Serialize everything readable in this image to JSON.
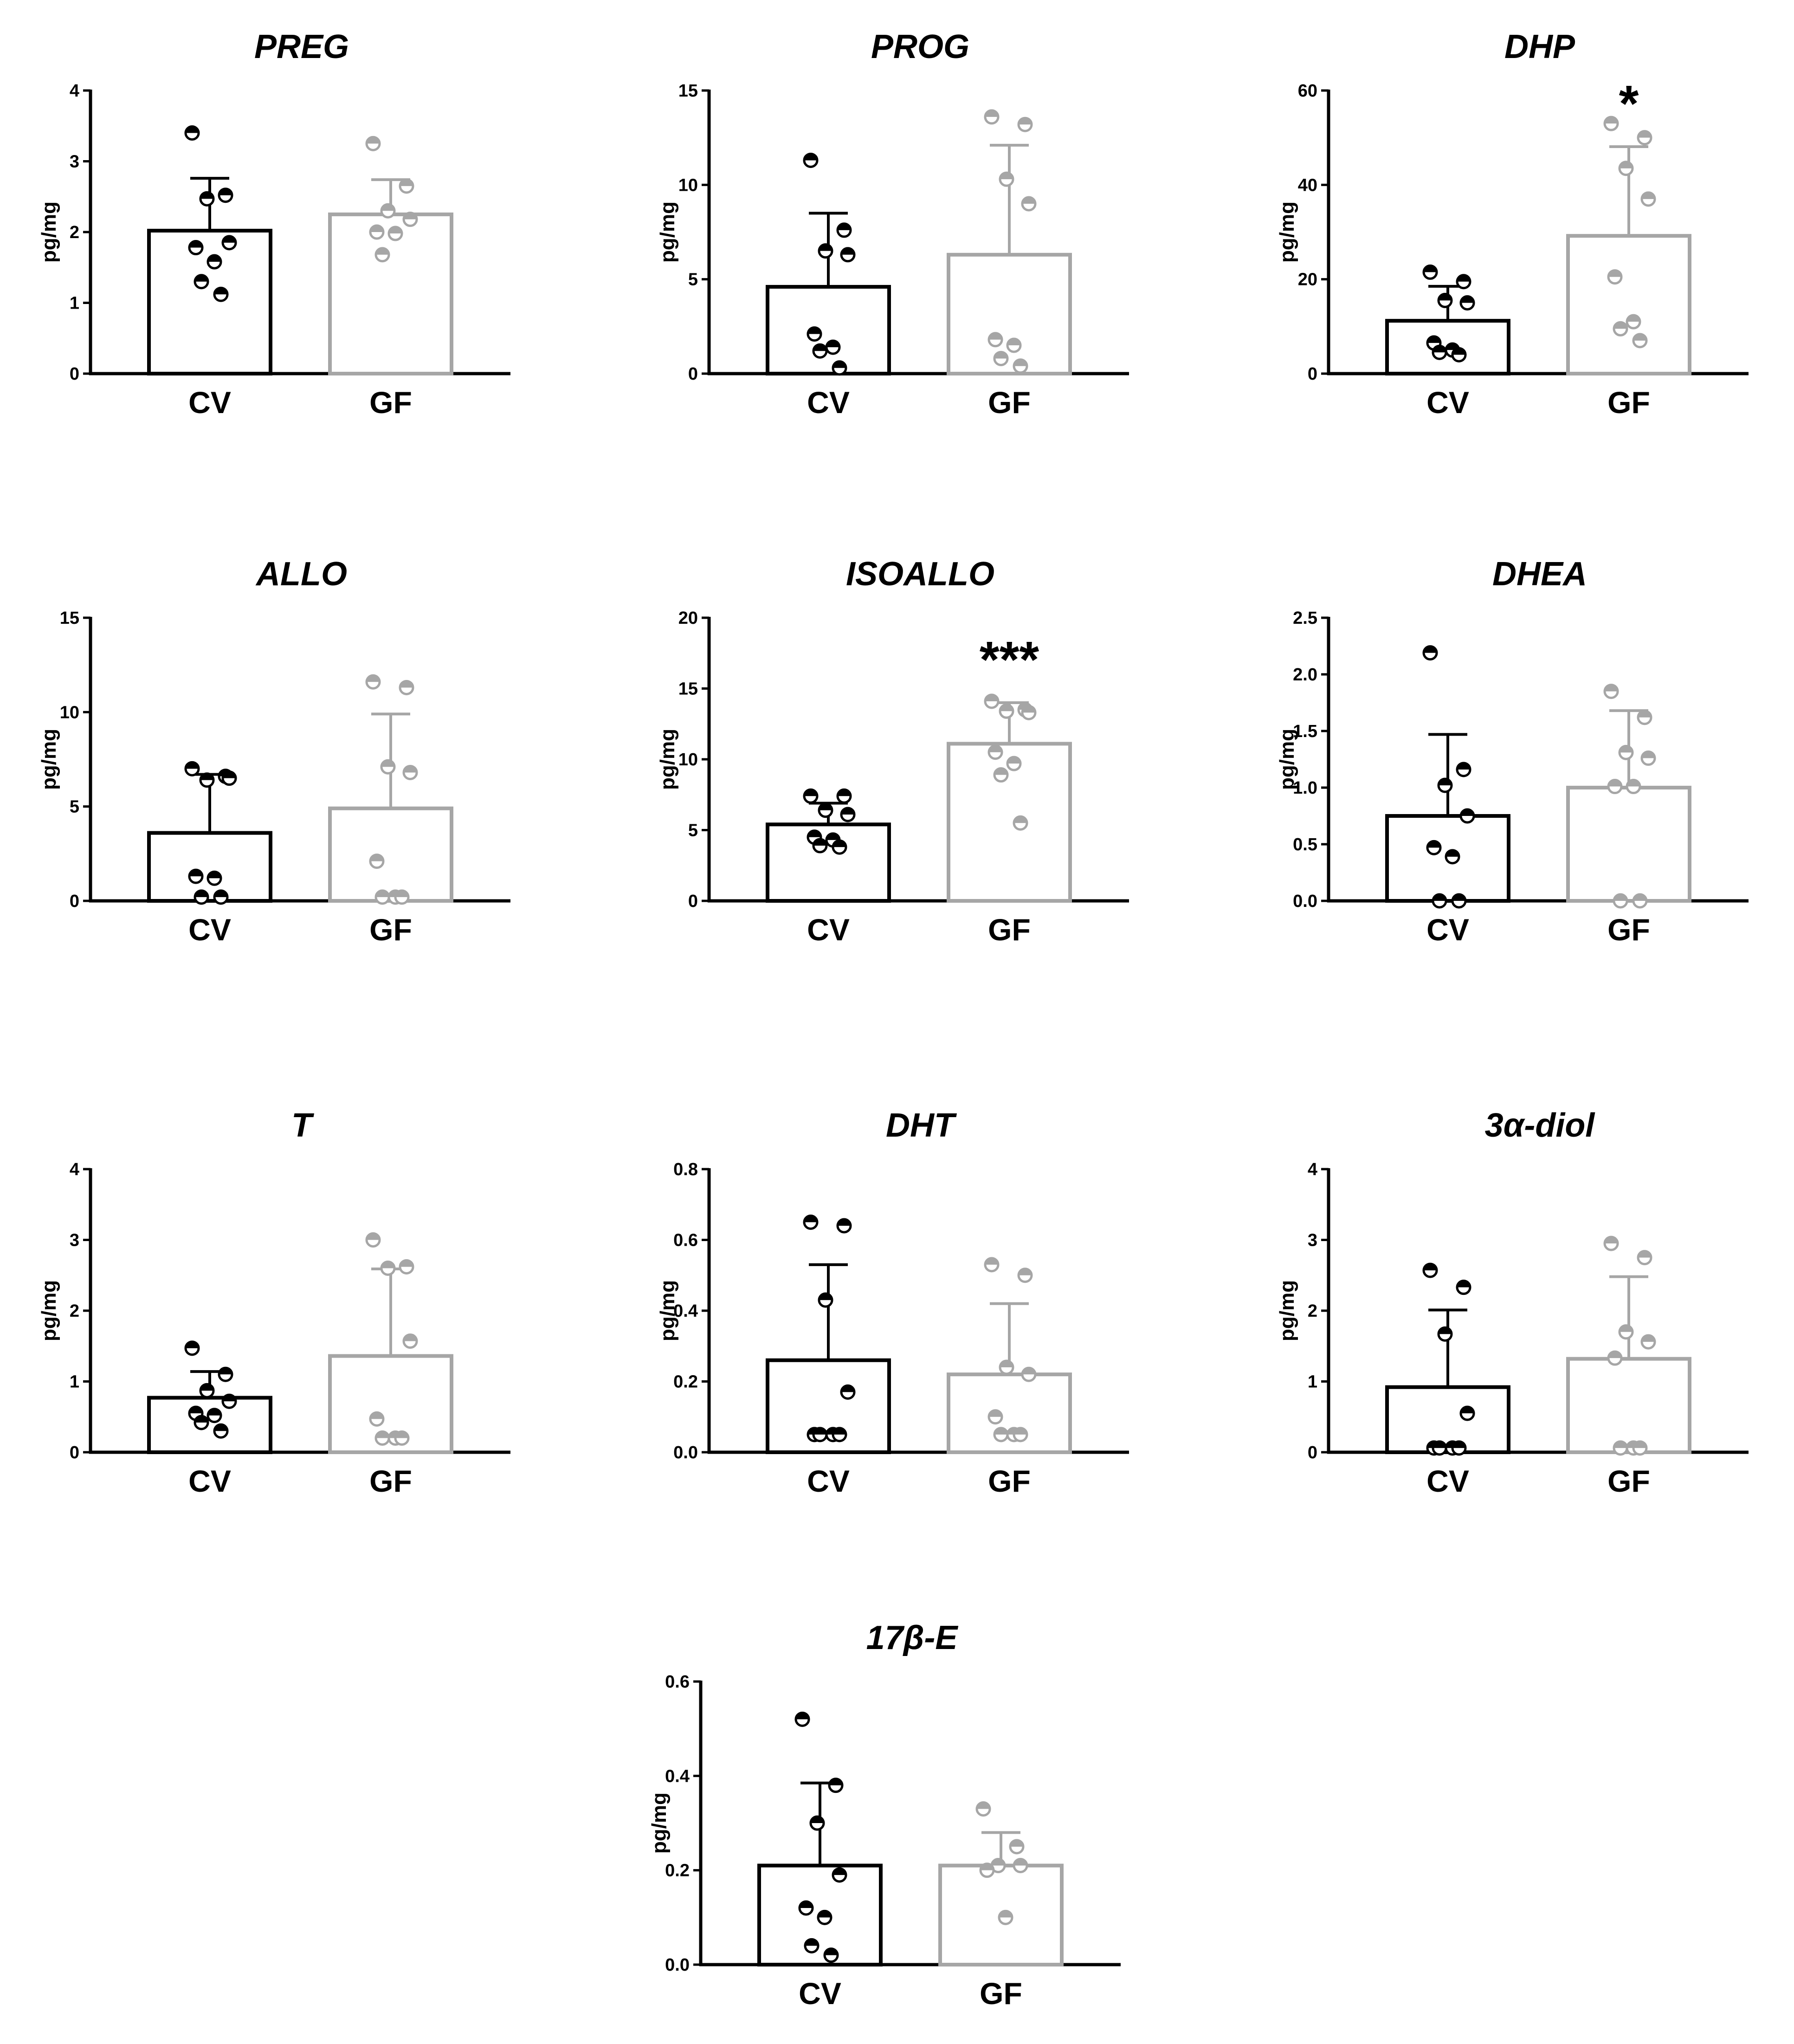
{
  "colors": {
    "cv": "#000000",
    "gf": "#a6a6a6",
    "axis": "#000000"
  },
  "chart_data": [
    {
      "type": "bar",
      "title": "PREG",
      "ylabel": "pg/mg",
      "categories": [
        "CV",
        "GF"
      ],
      "ylim": [
        0,
        4
      ],
      "yticks": [
        "0",
        "1",
        "2",
        "3",
        "4"
      ],
      "means": [
        2.02,
        2.25
      ],
      "sd": [
        0.74,
        0.49
      ],
      "significance": [
        "",
        ""
      ],
      "points": [
        [
          3.4,
          2.52,
          2.47,
          1.85,
          1.78,
          1.58,
          1.3,
          1.12
        ],
        [
          3.25,
          2.65,
          2.3,
          2.18,
          2.0,
          1.98,
          1.68
        ]
      ]
    },
    {
      "type": "bar",
      "title": "PROG",
      "ylabel": "pg/mg",
      "categories": [
        "CV",
        "GF"
      ],
      "ylim": [
        0,
        15
      ],
      "yticks": [
        "0",
        "5",
        "10",
        "15"
      ],
      "means": [
        4.6,
        6.3
      ],
      "sd": [
        3.9,
        5.8
      ],
      "significance": [
        "",
        ""
      ],
      "points": [
        [
          11.3,
          7.6,
          6.5,
          6.3,
          2.1,
          1.4,
          1.2,
          0.3
        ],
        [
          13.6,
          13.2,
          10.3,
          9.0,
          1.8,
          1.5,
          0.8,
          0.4
        ]
      ]
    },
    {
      "type": "bar",
      "title": "DHP",
      "ylabel": "pg/mg",
      "categories": [
        "CV",
        "GF"
      ],
      "ylim": [
        0,
        60
      ],
      "yticks": [
        "0",
        "20",
        "40",
        "60"
      ],
      "means": [
        11.2,
        29.2
      ],
      "sd": [
        7.3,
        18.9
      ],
      "significance": [
        "",
        "*"
      ],
      "points": [
        [
          21.5,
          19.5,
          15.5,
          15.0,
          6.5,
          5.0,
          4.5,
          4.0
        ],
        [
          53.0,
          50.0,
          43.5,
          37.0,
          20.5,
          11.0,
          9.5,
          7.0
        ]
      ]
    },
    {
      "type": "bar",
      "title": "ALLO",
      "ylabel": "pg/mg",
      "categories": [
        "CV",
        "GF"
      ],
      "ylim": [
        0,
        15
      ],
      "yticks": [
        "0",
        "5",
        "10",
        "15"
      ],
      "means": [
        3.6,
        4.9
      ],
      "sd": [
        3.1,
        5.0
      ],
      "significance": [
        "",
        ""
      ],
      "points": [
        [
          7.0,
          6.6,
          6.4,
          6.5,
          1.3,
          1.2,
          0.2,
          0.2
        ],
        [
          11.6,
          11.3,
          7.1,
          6.8,
          2.1,
          0.2,
          0.2,
          0.2
        ]
      ]
    },
    {
      "type": "bar",
      "title": "ISOALLO",
      "ylabel": "pg/mg",
      "categories": [
        "CV",
        "GF"
      ],
      "ylim": [
        0,
        20
      ],
      "yticks": [
        "0",
        "5",
        "10",
        "15",
        "20"
      ],
      "means": [
        5.4,
        11.1
      ],
      "sd": [
        1.5,
        2.9
      ],
      "significance": [
        "",
        "***"
      ],
      "points": [
        [
          7.4,
          7.4,
          6.4,
          6.1,
          4.5,
          4.3,
          3.9,
          3.8
        ],
        [
          14.1,
          13.5,
          13.4,
          13.3,
          10.5,
          9.7,
          8.9,
          5.5
        ]
      ]
    },
    {
      "type": "bar",
      "title": "DHEA",
      "ylabel": "pg/mg",
      "categories": [
        "CV",
        "GF"
      ],
      "ylim": [
        0,
        2.5
      ],
      "yticks": [
        "0.0",
        "0.5",
        "1.0",
        "1.5",
        "2.0",
        "2.5"
      ],
      "means": [
        0.75,
        1.0
      ],
      "sd": [
        0.72,
        0.68
      ],
      "significance": [
        "",
        ""
      ],
      "points": [
        [
          2.19,
          1.16,
          1.02,
          0.75,
          0.47,
          0.39,
          0.0,
          0.0
        ],
        [
          1.85,
          1.62,
          1.31,
          1.26,
          1.01,
          1.01,
          0.0,
          0.0
        ]
      ]
    },
    {
      "type": "bar",
      "title": "T",
      "ylabel": "pg/mg",
      "categories": [
        "CV",
        "GF"
      ],
      "ylim": [
        0,
        4
      ],
      "yticks": [
        "0",
        "1",
        "2",
        "3",
        "4"
      ],
      "means": [
        0.77,
        1.36
      ],
      "sd": [
        0.37,
        1.23
      ],
      "significance": [
        "",
        ""
      ],
      "points": [
        [
          1.47,
          1.1,
          0.87,
          0.72,
          0.55,
          0.52,
          0.42,
          0.3
        ],
        [
          3.0,
          2.62,
          2.6,
          1.57,
          0.47,
          0.2,
          0.2,
          0.2
        ]
      ]
    },
    {
      "type": "bar",
      "title": "DHT",
      "ylabel": "pg/mg",
      "categories": [
        "CV",
        "GF"
      ],
      "ylim": [
        0,
        0.8
      ],
      "yticks": [
        "0.0",
        "0.2",
        "0.4",
        "0.6",
        "0.8"
      ],
      "means": [
        0.26,
        0.22
      ],
      "sd": [
        0.27,
        0.2
      ],
      "significance": [
        "",
        ""
      ],
      "points": [
        [
          0.65,
          0.64,
          0.43,
          0.17,
          0.05,
          0.05,
          0.05,
          0.05
        ],
        [
          0.53,
          0.5,
          0.24,
          0.22,
          0.1,
          0.05,
          0.05,
          0.05
        ]
      ]
    },
    {
      "type": "bar",
      "title": "3α-diol",
      "ylabel": "pg/mg",
      "categories": [
        "CV",
        "GF"
      ],
      "ylim": [
        0,
        4
      ],
      "yticks": [
        "0",
        "1",
        "2",
        "3",
        "4"
      ],
      "means": [
        0.92,
        1.32
      ],
      "sd": [
        1.09,
        1.16
      ],
      "significance": [
        "",
        ""
      ],
      "points": [
        [
          2.57,
          2.33,
          1.67,
          0.55,
          0.06,
          0.06,
          0.06,
          0.06
        ],
        [
          2.95,
          2.75,
          1.7,
          1.56,
          1.33,
          0.06,
          0.06,
          0.06
        ]
      ]
    },
    {
      "type": "bar",
      "title": "17β-E",
      "ylabel": "pg/mg",
      "categories": [
        "CV",
        "GF"
      ],
      "ylim": [
        0,
        0.6
      ],
      "yticks": [
        "0.0",
        "0.2",
        "0.4",
        "0.6"
      ],
      "means": [
        0.21,
        0.21
      ],
      "sd": [
        0.175,
        0.07
      ],
      "significance": [
        "",
        ""
      ],
      "points": [
        [
          0.52,
          0.38,
          0.3,
          0.19,
          0.12,
          0.1,
          0.04,
          0.02
        ],
        [
          0.33,
          0.25,
          0.21,
          0.21,
          0.2,
          0.1
        ]
      ]
    }
  ]
}
